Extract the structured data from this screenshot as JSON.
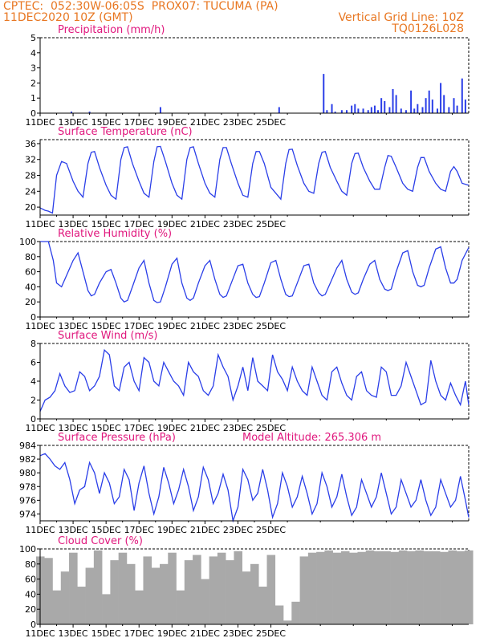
{
  "header": {
    "line1_left": "CPTEC:  052:30W-06:05S  PROX07: TUCUMA (PA)",
    "line2_left": "11DEC2020 10Z (GMT)",
    "line2_right": "Vertical Grid Line: 10Z",
    "line3_right": "TQ0126L028"
  },
  "colors": {
    "header": "#e87722",
    "title": "#e0177d",
    "line": "#2a3ee8",
    "cloud": "#a9a9a9",
    "axis": "#000000"
  },
  "chart_data": [
    {
      "type": "bar",
      "title": "Precipitation (mm/h)",
      "ylim": [
        0,
        5
      ],
      "yticks": [
        "0",
        "1",
        "2",
        "3",
        "4",
        "5"
      ],
      "xticks": [
        "11DEC",
        "13DEC",
        "15DEC",
        "17DEC",
        "19DEC",
        "21DEC",
        "23DEC",
        "25DEC"
      ],
      "x": [
        1.9,
        3.0,
        7.3,
        14.5,
        17.2,
        17.4,
        17.7,
        17.9,
        18.3,
        18.6,
        18.9,
        19.1,
        19.3,
        19.6,
        19.9,
        20.1,
        20.3,
        20.5,
        20.7,
        20.9,
        21.2,
        21.4,
        21.6,
        21.9,
        22.2,
        22.5,
        22.7,
        22.9,
        23.2,
        23.4,
        23.6,
        23.8,
        24.1,
        24.3,
        24.5,
        24.8,
        25.1,
        25.3,
        25.6,
        25.8
      ],
      "values": [
        0.1,
        0.1,
        0.4,
        0.4,
        2.6,
        0.2,
        0.6,
        0.1,
        0.2,
        0.2,
        0.5,
        0.6,
        0.3,
        0.3,
        0.2,
        0.4,
        0.5,
        0.2,
        1.0,
        0.8,
        0.4,
        1.6,
        1.2,
        0.3,
        0.2,
        1.5,
        0.3,
        0.6,
        0.4,
        1.0,
        1.5,
        0.9,
        0.3,
        2.0,
        1.2,
        0.4,
        1.0,
        0.5,
        2.3,
        0.9
      ]
    },
    {
      "type": "line",
      "title": "Surface Temperature (nC)",
      "ylim": [
        18,
        37
      ],
      "yticks": [
        "20",
        "24",
        "28",
        "32",
        "36"
      ],
      "xticks": [
        "11DEC",
        "13DEC",
        "15DEC",
        "17DEC",
        "19DEC",
        "21DEC",
        "23DEC",
        "25DEC"
      ],
      "x": [
        0,
        0.3,
        0.5,
        0.75,
        1.0,
        1.3,
        1.6,
        2.0,
        2.3,
        2.6,
        2.9,
        3.1,
        3.3,
        3.6,
        4.0,
        4.3,
        4.6,
        4.9,
        5.1,
        5.3,
        5.6,
        6.0,
        6.3,
        6.6,
        6.9,
        7.1,
        7.3,
        7.6,
        8.0,
        8.3,
        8.6,
        8.9,
        9.1,
        9.3,
        9.6,
        10.0,
        10.3,
        10.6,
        10.9,
        11.1,
        11.3,
        11.6,
        12.0,
        12.3,
        12.6,
        12.9,
        13.1,
        13.3,
        13.6,
        14.0,
        14.3,
        14.6,
        14.9,
        15.1,
        15.3,
        15.6,
        16.0,
        16.3,
        16.6,
        16.9,
        17.1,
        17.3,
        17.6,
        18.0,
        18.3,
        18.6,
        18.9,
        19.1,
        19.3,
        19.6,
        20.0,
        20.3,
        20.6,
        20.9,
        21.1,
        21.3,
        21.6,
        22.0,
        22.3,
        22.6,
        22.9,
        23.1,
        23.3,
        23.6,
        24.0,
        24.3,
        24.6,
        24.9,
        25.1,
        25.3,
        25.6,
        26.0
      ],
      "values": [
        19.8,
        19.2,
        19.0,
        18.5,
        28.0,
        31.5,
        31.0,
        26.5,
        24.0,
        22.5,
        31.0,
        33.8,
        34.0,
        30.0,
        25.5,
        23.0,
        22.0,
        32.0,
        35.0,
        35.2,
        31.0,
        26.5,
        23.5,
        22.5,
        31.5,
        35.2,
        35.3,
        31.5,
        26.0,
        23.0,
        22.0,
        32.0,
        35.0,
        35.2,
        31.0,
        26.0,
        23.5,
        22.5,
        32.0,
        35.0,
        35.0,
        31.0,
        26.0,
        23.0,
        22.5,
        31.0,
        34.0,
        34.0,
        31.0,
        25.0,
        23.5,
        22.0,
        31.0,
        34.5,
        34.6,
        30.5,
        26.0,
        24.0,
        23.5,
        31.0,
        33.8,
        34.0,
        30.0,
        26.5,
        24.0,
        23.0,
        31.0,
        33.5,
        33.6,
        30.0,
        26.5,
        24.5,
        24.5,
        30.0,
        33.0,
        32.8,
        30.0,
        26.0,
        24.5,
        24.0,
        30.0,
        32.5,
        32.5,
        29.0,
        26.0,
        24.5,
        24.0,
        29.0,
        30.2,
        29.0,
        26.0,
        25.5
      ]
    },
    {
      "type": "line",
      "title": "Relative Humidity (%)",
      "ylim": [
        0,
        100
      ],
      "yticks": [
        "0",
        "20",
        "40",
        "60",
        "80",
        "100"
      ],
      "xticks": [
        "11DEC",
        "13DEC",
        "15DEC",
        "17DEC",
        "19DEC",
        "21DEC",
        "23DEC",
        "25DEC"
      ],
      "x": [
        0,
        0.5,
        0.8,
        1.0,
        1.3,
        1.6,
        2.0,
        2.3,
        2.6,
        2.9,
        3.1,
        3.3,
        3.6,
        4.0,
        4.3,
        4.6,
        4.9,
        5.1,
        5.3,
        5.6,
        6.0,
        6.3,
        6.6,
        6.9,
        7.1,
        7.3,
        7.6,
        8.0,
        8.3,
        8.6,
        8.9,
        9.1,
        9.3,
        9.6,
        10.0,
        10.3,
        10.6,
        10.9,
        11.1,
        11.3,
        11.6,
        12.0,
        12.3,
        12.6,
        12.9,
        13.1,
        13.3,
        13.6,
        14.0,
        14.3,
        14.6,
        14.9,
        15.1,
        15.3,
        15.6,
        16.0,
        16.3,
        16.6,
        16.9,
        17.1,
        17.3,
        17.6,
        18.0,
        18.3,
        18.6,
        18.9,
        19.1,
        19.3,
        19.6,
        20.0,
        20.3,
        20.6,
        20.9,
        21.1,
        21.3,
        21.6,
        22.0,
        22.3,
        22.6,
        22.9,
        23.1,
        23.3,
        23.6,
        24.0,
        24.3,
        24.6,
        24.9,
        25.1,
        25.3,
        25.6,
        26.0
      ],
      "values": [
        100,
        100,
        75,
        45,
        40,
        55,
        75,
        85,
        60,
        35,
        28,
        30,
        45,
        60,
        63,
        45,
        25,
        20,
        22,
        40,
        65,
        75,
        45,
        22,
        19,
        20,
        40,
        70,
        78,
        45,
        25,
        22,
        25,
        45,
        68,
        75,
        50,
        30,
        26,
        28,
        45,
        68,
        70,
        45,
        30,
        26,
        27,
        45,
        72,
        75,
        50,
        30,
        27,
        28,
        45,
        68,
        70,
        45,
        32,
        28,
        30,
        45,
        65,
        75,
        50,
        33,
        30,
        32,
        50,
        70,
        75,
        50,
        37,
        35,
        37,
        60,
        85,
        88,
        60,
        42,
        40,
        42,
        65,
        90,
        93,
        65,
        45,
        45,
        50,
        75,
        92
      ]
    },
    {
      "type": "line",
      "title": "Surface Wind (m/s)",
      "ylim": [
        0,
        8
      ],
      "yticks": [
        "0",
        "2",
        "4",
        "6",
        "8"
      ],
      "xticks": [
        "11DEC",
        "13DEC",
        "15DEC",
        "17DEC",
        "19DEC",
        "21DEC",
        "23DEC",
        "25DEC"
      ],
      "x": [
        0,
        0.3,
        0.6,
        0.9,
        1.2,
        1.5,
        1.8,
        2.1,
        2.4,
        2.7,
        3.0,
        3.3,
        3.6,
        3.9,
        4.2,
        4.5,
        4.8,
        5.1,
        5.4,
        5.7,
        6.0,
        6.3,
        6.6,
        6.9,
        7.2,
        7.5,
        7.8,
        8.1,
        8.4,
        8.7,
        9.0,
        9.3,
        9.6,
        9.9,
        10.2,
        10.5,
        10.8,
        11.1,
        11.4,
        11.7,
        12.0,
        12.3,
        12.6,
        12.9,
        13.2,
        13.5,
        13.8,
        14.1,
        14.4,
        14.7,
        15.0,
        15.3,
        15.6,
        15.9,
        16.2,
        16.5,
        16.8,
        17.1,
        17.4,
        17.7,
        18.0,
        18.3,
        18.6,
        18.9,
        19.2,
        19.5,
        19.8,
        20.1,
        20.4,
        20.7,
        21.0,
        21.3,
        21.6,
        21.9,
        22.2,
        22.5,
        22.8,
        23.1,
        23.4,
        23.7,
        24.0,
        24.3,
        24.6,
        24.9,
        25.2,
        25.5,
        25.8,
        26.0
      ],
      "values": [
        0.8,
        2.0,
        2.3,
        3.0,
        4.8,
        3.5,
        2.8,
        3.0,
        5.0,
        4.5,
        3.0,
        3.5,
        4.5,
        7.3,
        6.8,
        3.5,
        3.0,
        5.5,
        6.0,
        4.0,
        3.0,
        6.5,
        6.0,
        4.0,
        3.5,
        6.0,
        5.0,
        4.0,
        3.5,
        2.5,
        6.0,
        5.0,
        4.5,
        3.0,
        2.5,
        3.5,
        6.8,
        5.5,
        4.5,
        2.0,
        3.5,
        5.5,
        3.0,
        6.5,
        4.0,
        3.5,
        3.0,
        6.8,
        5.0,
        4.2,
        3.0,
        5.5,
        4.0,
        3.0,
        2.5,
        5.5,
        4.0,
        2.5,
        2.0,
        5.0,
        5.5,
        3.8,
        2.5,
        2.0,
        4.5,
        5.0,
        3.0,
        2.5,
        2.3,
        5.5,
        5.0,
        2.5,
        2.5,
        3.5,
        6.0,
        4.5,
        3.0,
        1.5,
        1.8,
        6.2,
        4.0,
        2.5,
        2.0,
        3.8,
        2.5,
        1.5,
        4.0,
        1.5
      ]
    },
    {
      "type": "line",
      "title": "Surface Pressure (hPa)",
      "subtitle": "Model Altitude: 265.306  m",
      "ylim": [
        973,
        984
      ],
      "yticks": [
        "974",
        "976",
        "978",
        "980",
        "982",
        "984"
      ],
      "xticks": [
        "11DEC",
        "13DEC",
        "15DEC",
        "17DEC",
        "19DEC",
        "21DEC",
        "23DEC",
        "25DEC"
      ],
      "x": [
        0,
        0.3,
        0.6,
        0.9,
        1.2,
        1.5,
        1.8,
        2.1,
        2.4,
        2.7,
        3.0,
        3.3,
        3.6,
        3.9,
        4.2,
        4.5,
        4.8,
        5.1,
        5.4,
        5.7,
        6.0,
        6.3,
        6.6,
        6.9,
        7.2,
        7.5,
        7.8,
        8.1,
        8.4,
        8.7,
        9.0,
        9.3,
        9.6,
        9.9,
        10.2,
        10.5,
        10.8,
        11.1,
        11.4,
        11.7,
        12.0,
        12.3,
        12.6,
        12.9,
        13.2,
        13.5,
        13.8,
        14.1,
        14.4,
        14.7,
        15.0,
        15.3,
        15.6,
        15.9,
        16.2,
        16.5,
        16.8,
        17.1,
        17.4,
        17.7,
        18.0,
        18.3,
        18.6,
        18.9,
        19.2,
        19.5,
        19.8,
        20.1,
        20.4,
        20.7,
        21.0,
        21.3,
        21.6,
        21.9,
        22.2,
        22.5,
        22.8,
        23.1,
        23.4,
        23.7,
        24.0,
        24.3,
        24.6,
        24.9,
        25.2,
        25.5,
        25.8,
        26.0
      ],
      "values": [
        982.5,
        982.8,
        982.0,
        981.0,
        980.5,
        981.5,
        979.0,
        975.5,
        977.5,
        978.0,
        981.5,
        980.0,
        977.0,
        980.0,
        978.5,
        975.5,
        976.5,
        980.5,
        979.0,
        974.5,
        978.5,
        981.0,
        977.0,
        974.0,
        976.5,
        980.8,
        978.5,
        975.5,
        977.5,
        980.5,
        978.0,
        974.5,
        976.5,
        980.8,
        979.0,
        975.5,
        977.0,
        979.8,
        977.5,
        973.0,
        975.0,
        980.5,
        979.0,
        976.0,
        977.0,
        980.5,
        977.5,
        973.5,
        975.5,
        980.0,
        978.0,
        975.0,
        976.5,
        979.5,
        977.0,
        974.0,
        975.5,
        980.0,
        978.0,
        975.0,
        976.5,
        979.8,
        976.5,
        973.8,
        975.0,
        979.0,
        977.0,
        975.0,
        976.5,
        980.0,
        977.0,
        974.0,
        975.0,
        979.0,
        977.0,
        975.0,
        976.0,
        979.0,
        976.0,
        973.8,
        975.0,
        979.0,
        977.0,
        975.0,
        976.0,
        979.5,
        976.0,
        973.5
      ]
    },
    {
      "type": "bar",
      "title": "Cloud Cover (%)",
      "ylim": [
        0,
        100
      ],
      "yticks": [
        "0",
        "20",
        "40",
        "60",
        "80",
        "100"
      ],
      "xticks": [
        "11DEC",
        "13DEC",
        "15DEC",
        "17DEC",
        "19DEC",
        "21DEC",
        "23DEC",
        "25DEC"
      ],
      "x": [
        0,
        0.5,
        1.0,
        1.5,
        2.0,
        2.5,
        3.0,
        3.5,
        4.0,
        4.5,
        5.0,
        5.5,
        6.0,
        6.5,
        7.0,
        7.5,
        8.0,
        8.5,
        9.0,
        9.5,
        10.0,
        10.5,
        11.0,
        11.5,
        12.0,
        12.5,
        13.0,
        13.5,
        14.0,
        14.5,
        15.0,
        15.5,
        16.0,
        16.5,
        17.0,
        17.5,
        18.0,
        18.5,
        19.0,
        19.5,
        20.0,
        20.5,
        21.0,
        21.5,
        22.0,
        22.5,
        23.0,
        23.5,
        24.0,
        24.5,
        25.0,
        25.5,
        26.0
      ],
      "values": [
        90,
        88,
        45,
        70,
        95,
        50,
        75,
        98,
        40,
        85,
        95,
        80,
        45,
        90,
        75,
        80,
        95,
        45,
        85,
        92,
        60,
        90,
        95,
        85,
        97,
        70,
        80,
        50,
        92,
        25,
        5,
        30,
        90,
        95,
        96,
        98,
        95,
        97,
        95,
        96,
        98,
        97,
        97,
        96,
        98,
        97,
        98,
        97,
        97,
        96,
        98,
        97,
        98
      ]
    }
  ]
}
